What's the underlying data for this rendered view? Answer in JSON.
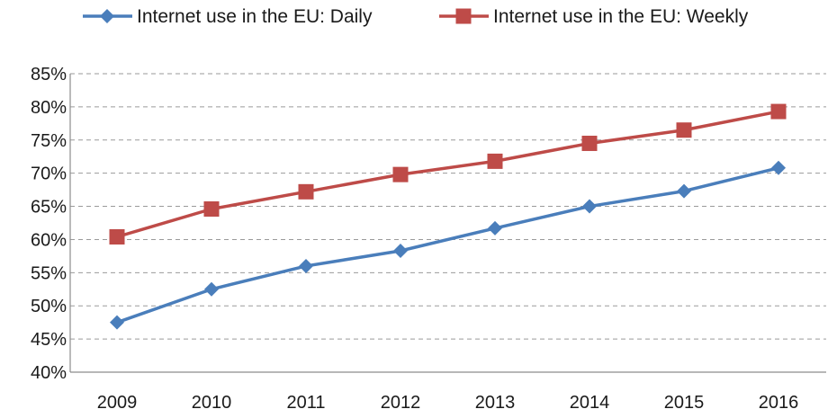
{
  "chart_data": {
    "type": "line",
    "title": "",
    "xlabel": "",
    "ylabel": "",
    "categories": [
      "2009",
      "2010",
      "2011",
      "2012",
      "2013",
      "2014",
      "2015",
      "2016"
    ],
    "series": [
      {
        "name": "Internet use in the EU: Daily",
        "values": [
          47.5,
          52.5,
          56.0,
          58.3,
          61.7,
          65.0,
          67.3,
          70.8
        ],
        "color": "#4a7ebb",
        "marker": "diamond"
      },
      {
        "name": "Internet use in the EU: Weekly",
        "values": [
          60.4,
          64.6,
          67.2,
          69.8,
          71.8,
          74.5,
          76.5,
          79.3
        ],
        "color": "#be4b48",
        "marker": "square"
      }
    ],
    "ylim": [
      40,
      85
    ],
    "yticks": [
      "40%",
      "45%",
      "50%",
      "55%",
      "60%",
      "65%",
      "70%",
      "75%",
      "80%",
      "85%"
    ],
    "grid": "horizontal-dashed",
    "legend_position": "top"
  }
}
